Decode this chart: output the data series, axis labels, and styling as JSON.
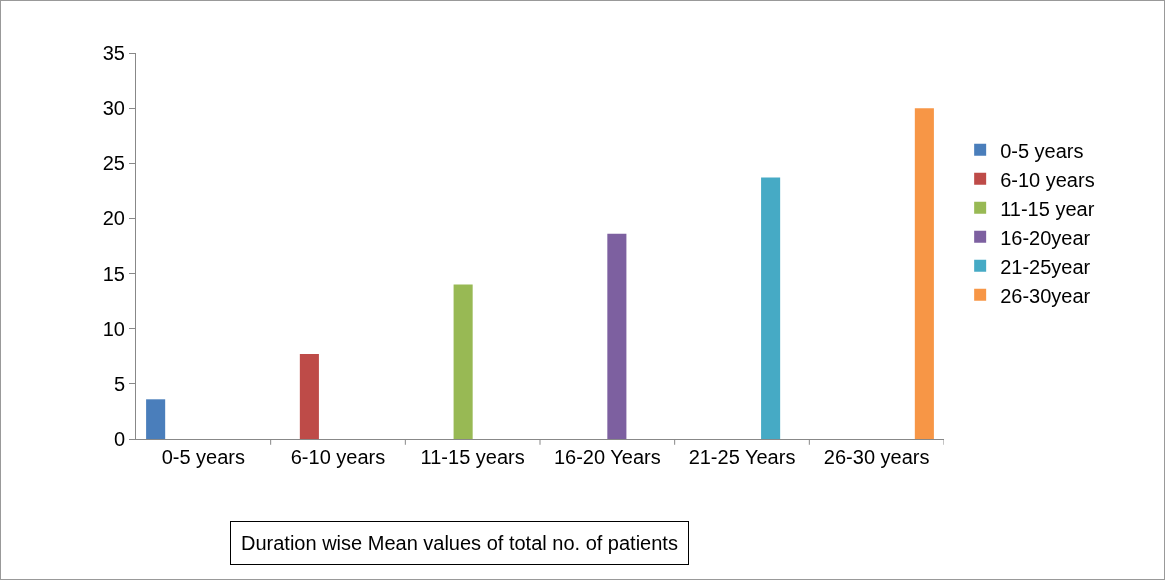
{
  "chart_data": {
    "type": "bar",
    "xlabel": "Duration wise Mean values of total no. of patients",
    "categories": [
      "0-5 years",
      "6-10 years",
      "11-15 years",
      "16-20 Years",
      "21-25 Years",
      "26-30 years"
    ],
    "series": [
      {
        "name": "0-5 years",
        "color": "#4a7ebb",
        "values": [
          3.6,
          null,
          null,
          null,
          null,
          null
        ]
      },
      {
        "name": "6-10 years",
        "color": "#be4b48",
        "values": [
          null,
          7.7,
          null,
          null,
          null,
          null
        ]
      },
      {
        "name": "11-15 year",
        "color": "#98b954",
        "values": [
          null,
          null,
          14,
          null,
          null,
          null
        ]
      },
      {
        "name": "16-20year",
        "color": "#7d60a0",
        "values": [
          null,
          null,
          null,
          18.6,
          null,
          null
        ]
      },
      {
        "name": "21-25year",
        "color": "#46aac5",
        "values": [
          null,
          null,
          null,
          null,
          23.7,
          null
        ]
      },
      {
        "name": "26-30year",
        "color": "#f79646",
        "values": [
          null,
          null,
          null,
          null,
          null,
          30
        ]
      }
    ],
    "ylim": [
      0,
      35
    ],
    "yticks": [
      0,
      5,
      10,
      15,
      20,
      25,
      30,
      35
    ],
    "grid": false,
    "legend": "right"
  }
}
